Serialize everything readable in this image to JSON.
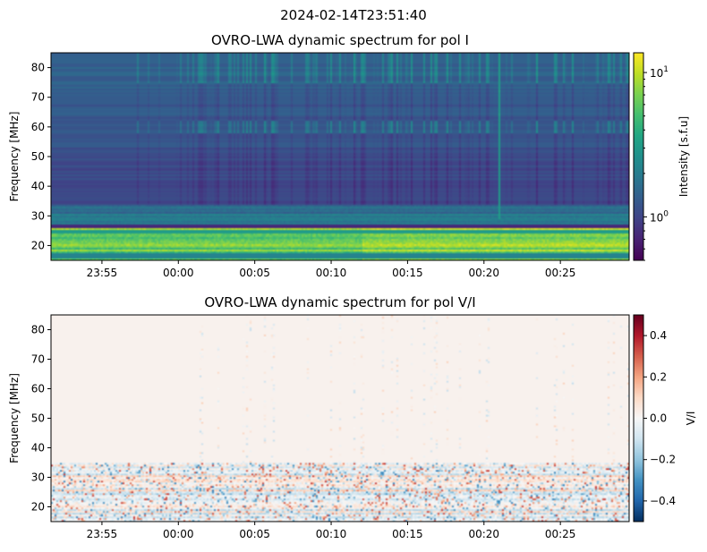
{
  "suptitle": "2024-02-14T23:51:40",
  "chart_data": [
    {
      "type": "heatmap",
      "title": "OVRO-LWA dynamic spectrum for pol I",
      "xlabel": "",
      "ylabel": "Frequency [MHz]",
      "xlim": [
        "23:51:40",
        "00:29:30"
      ],
      "ylim": [
        15,
        85
      ],
      "xticks": [
        "23:55",
        "00:00",
        "00:05",
        "00:10",
        "00:15",
        "00:20",
        "00:25"
      ],
      "yticks": [
        20,
        30,
        40,
        50,
        60,
        70,
        80
      ],
      "colormap": "viridis",
      "colorbar": {
        "label": "Intensity [s.f.u]",
        "scale": "log",
        "range": [
          0.5,
          13.7
        ],
        "ticks": [
          "10^0",
          "10^1"
        ],
        "tick_values": [
          1,
          10
        ]
      },
      "features": {
        "bright_band_MHz": [
          15,
          26
        ],
        "burst_time": "00:21:00",
        "burst_freq_range_MHz": [
          29,
          85
        ]
      }
    },
    {
      "type": "heatmap",
      "title": "OVRO-LWA dynamic spectrum for pol V/I",
      "xlabel": "",
      "ylabel": "Frequency [MHz]",
      "xlim": [
        "23:51:40",
        "00:29:30"
      ],
      "ylim": [
        15,
        85
      ],
      "xticks": [
        "23:55",
        "00:00",
        "00:05",
        "00:10",
        "00:15",
        "00:20",
        "00:25"
      ],
      "yticks": [
        20,
        30,
        40,
        50,
        60,
        70,
        80
      ],
      "colormap": "RdBu_r",
      "colorbar": {
        "label": "V/I",
        "scale": "linear",
        "range": [
          -0.5,
          0.5
        ],
        "ticks": [
          "−0.4",
          "−0.2",
          "0.0",
          "0.2",
          "0.4"
        ],
        "tick_values": [
          -0.4,
          -0.2,
          0.0,
          0.2,
          0.4
        ]
      }
    }
  ]
}
